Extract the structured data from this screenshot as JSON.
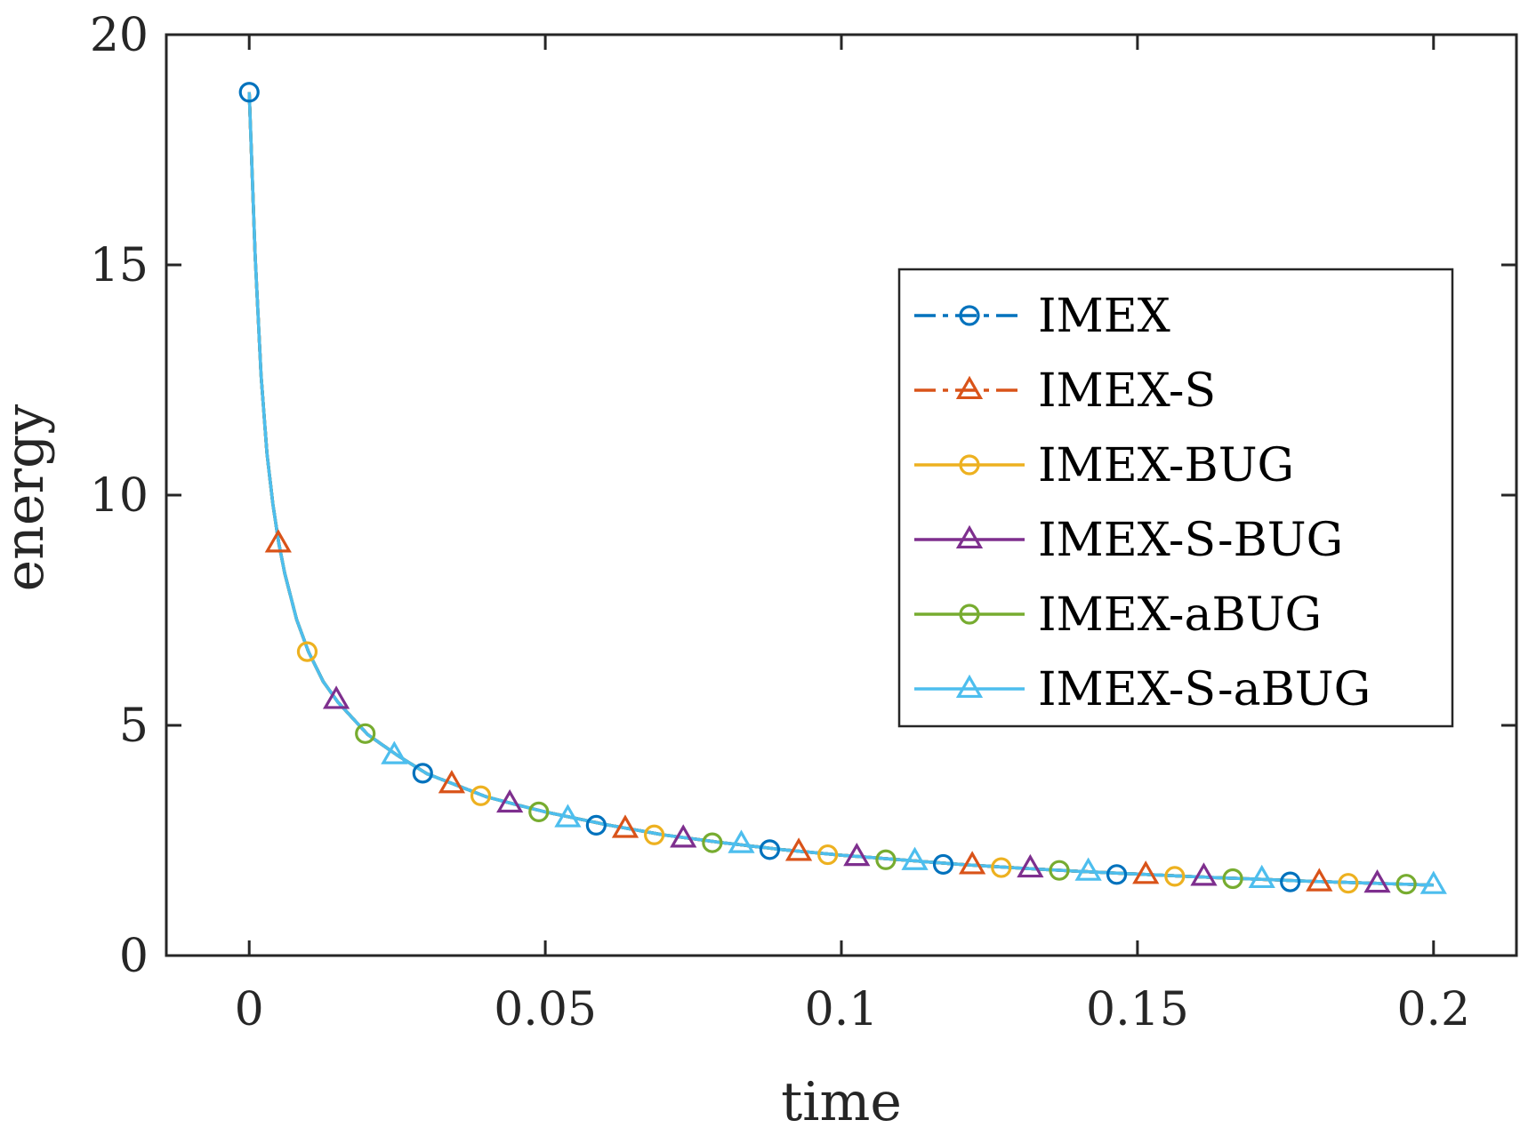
{
  "chart_data": {
    "type": "line",
    "title": "",
    "xlabel": "time",
    "ylabel": "energy",
    "xlim": [
      -0.014,
      0.214
    ],
    "ylim": [
      0,
      20
    ],
    "xticks": [
      0,
      0.05,
      0.1,
      0.15,
      0.2
    ],
    "xtick_labels": [
      "0",
      "0.05",
      "0.1",
      "0.15",
      "0.2"
    ],
    "yticks": [
      0,
      5,
      10,
      15,
      20
    ],
    "ytick_labels": [
      "0",
      "5",
      "10",
      "15",
      "20"
    ],
    "grid": false,
    "legend_position": "right",
    "curve": {
      "x": [
        0,
        0.001,
        0.002,
        0.003,
        0.004,
        0.005,
        0.006,
        0.008,
        0.01,
        0.0125,
        0.015,
        0.02,
        0.025,
        0.03,
        0.035,
        0.04,
        0.045,
        0.05,
        0.06,
        0.07,
        0.08,
        0.09,
        0.1,
        0.11,
        0.12,
        0.13,
        0.14,
        0.15,
        0.16,
        0.17,
        0.18,
        0.19,
        0.2
      ],
      "y": [
        18.75,
        15.2,
        12.6,
        10.9,
        9.8,
        8.95,
        8.3,
        7.3,
        6.6,
        5.95,
        5.5,
        4.8,
        4.35,
        3.95,
        3.7,
        3.45,
        3.28,
        3.12,
        2.85,
        2.62,
        2.45,
        2.3,
        2.18,
        2.08,
        1.98,
        1.9,
        1.83,
        1.77,
        1.71,
        1.66,
        1.61,
        1.57,
        1.53
      ]
    },
    "series": [
      {
        "name": "IMEX",
        "color": "#0072BD",
        "line_style": "dash-dot",
        "marker": "circle",
        "marker_x": [
          0,
          0.0293,
          0.0586,
          0.0879,
          0.1172,
          0.1465,
          0.1758
        ],
        "marker_y": [
          18.75,
          3.96,
          2.83,
          2.3,
          1.98,
          1.76,
          1.6
        ]
      },
      {
        "name": "IMEX-S",
        "color": "#D95319",
        "line_style": "dash-dot",
        "marker": "triangle",
        "marker_x": [
          0.0049,
          0.0342,
          0.0635,
          0.0928,
          0.1221,
          0.1514,
          0.1807
        ],
        "marker_y": [
          8.95,
          3.72,
          2.75,
          2.25,
          1.96,
          1.75,
          1.59
        ]
      },
      {
        "name": "IMEX-BUG",
        "color": "#EDB120",
        "line_style": "solid",
        "marker": "circle",
        "marker_x": [
          0.0098,
          0.0391,
          0.0684,
          0.0977,
          0.127,
          0.1563,
          0.1856
        ],
        "marker_y": [
          6.6,
          3.47,
          2.62,
          2.19,
          1.91,
          1.72,
          1.57
        ]
      },
      {
        "name": "IMEX-S-BUG",
        "color": "#7E2F8E",
        "line_style": "solid",
        "marker": "triangle",
        "marker_x": [
          0.0147,
          0.044,
          0.0733,
          0.1026,
          0.1319,
          0.1612,
          0.1905
        ],
        "marker_y": [
          5.55,
          3.3,
          2.54,
          2.14,
          1.89,
          1.71,
          1.56
        ]
      },
      {
        "name": "IMEX-aBUG",
        "color": "#77AC30",
        "line_style": "solid",
        "marker": "circle",
        "marker_x": [
          0.0196,
          0.0489,
          0.0782,
          0.1075,
          0.1368,
          0.1661,
          0.1954
        ],
        "marker_y": [
          4.82,
          3.12,
          2.45,
          2.08,
          1.85,
          1.67,
          1.55
        ]
      },
      {
        "name": "IMEX-S-aBUG",
        "color": "#4DBEEE",
        "line_style": "solid",
        "marker": "triangle",
        "marker_x": [
          0.0245,
          0.0538,
          0.0831,
          0.1124,
          0.1417,
          0.171,
          0.2
        ],
        "marker_y": [
          4.35,
          2.98,
          2.42,
          2.05,
          1.82,
          1.66,
          1.53
        ]
      }
    ]
  }
}
